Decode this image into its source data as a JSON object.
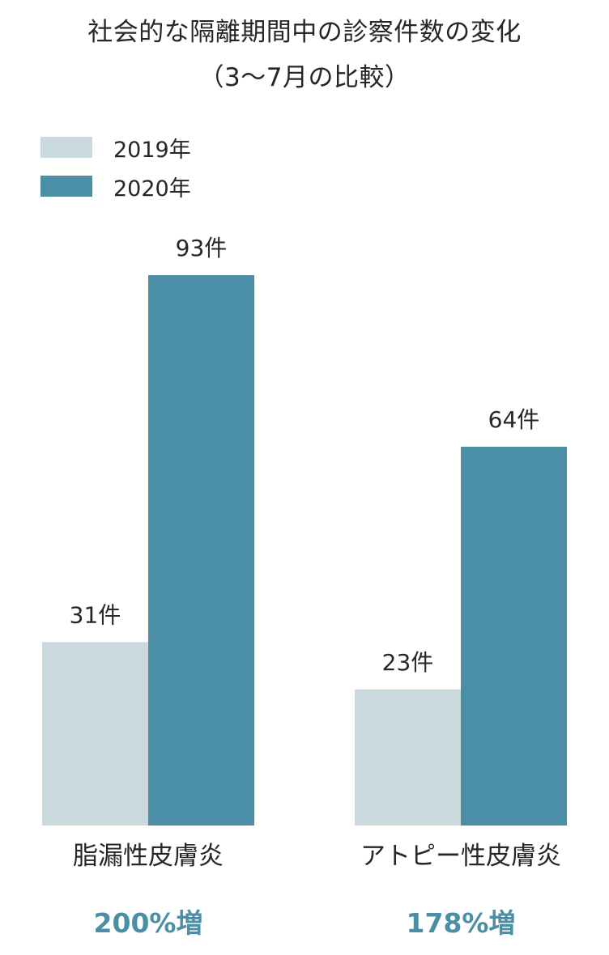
{
  "chart_data": {
    "type": "bar",
    "title": "社会的な隔離期間中の診察件数の変化",
    "subtitle": "（3〜7月の比較）",
    "categories": [
      "脂漏性皮膚炎",
      "アトピー性皮膚炎"
    ],
    "series": [
      {
        "name": "2019年",
        "values": [
          31,
          23
        ],
        "labels": [
          "31件",
          "23件"
        ],
        "color": "#c9d9de"
      },
      {
        "name": "2020年",
        "values": [
          93,
          64
        ],
        "labels": [
          "93件",
          "64件"
        ],
        "color": "#4a8fa5"
      }
    ],
    "annotations": [
      "200%増",
      "178%増"
    ],
    "annotation_color": "#4a8fa5",
    "ylim": [
      0,
      100
    ],
    "grid": false,
    "legend": "top-left"
  }
}
